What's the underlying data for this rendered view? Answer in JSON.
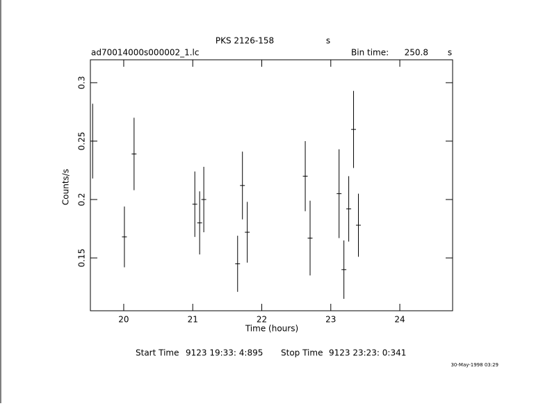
{
  "chart_data": {
    "type": "errorbar",
    "title": "PKS 2126-158",
    "title_unit": "s",
    "subtitle": "ad70014000s000002_1.lc",
    "bin_label": "Bin time:",
    "bin_value": "250.8",
    "bin_unit": "s",
    "xlabel": "Time (hours)",
    "ylabel": "Counts/s",
    "start_label": "Start Time",
    "start": "9123 19:33: 4:895",
    "stop_label": "Stop Time",
    "stop": "9123 23:23: 0:341",
    "date": "30-May-1998 03:29",
    "xlim": [
      19.517,
      24.765
    ],
    "ylim": [
      0.1048,
      0.3196
    ],
    "xticks": [
      20,
      21,
      22,
      23,
      24
    ],
    "yticks": [
      0.15,
      0.2,
      0.25,
      0.3
    ],
    "x_error": 0.035,
    "color": "#000000",
    "x": [
      19.55,
      20.01,
      20.15,
      21.03,
      21.1,
      21.16,
      21.65,
      21.72,
      21.79,
      22.63,
      22.7,
      23.12,
      23.19,
      23.26,
      23.33,
      23.4
    ],
    "values": [
      0.25,
      0.168,
      0.239,
      0.196,
      0.18,
      0.2,
      0.145,
      0.212,
      0.172,
      0.22,
      0.167,
      0.205,
      0.14,
      0.192,
      0.26,
      0.178
    ],
    "errors": [
      0.032,
      0.026,
      0.031,
      0.028,
      0.027,
      0.028,
      0.024,
      0.029,
      0.026,
      0.03,
      0.032,
      0.038,
      0.025,
      0.028,
      0.033,
      0.027
    ]
  }
}
